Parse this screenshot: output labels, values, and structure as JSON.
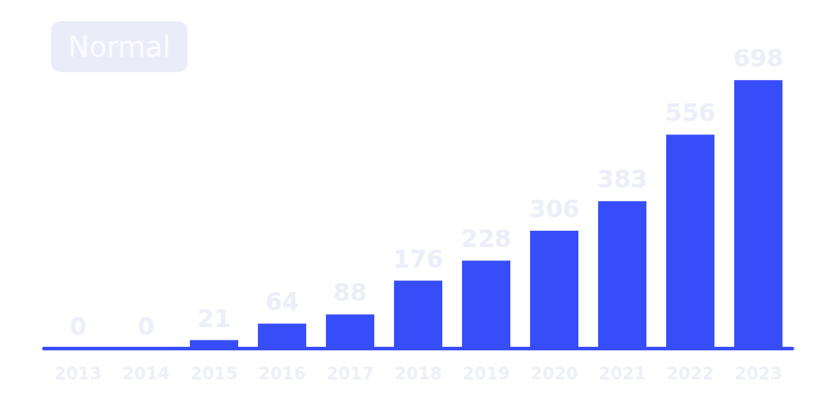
{
  "chart_data": {
    "type": "bar",
    "title": "Normal",
    "categories": [
      "2013",
      "2014",
      "2015",
      "2016",
      "2017",
      "2018",
      "2019",
      "2020",
      "2021",
      "2022",
      "2023"
    ],
    "values": [
      0,
      0,
      21,
      64,
      88,
      176,
      228,
      306,
      383,
      556,
      698
    ],
    "color": "#374dfa",
    "ylim": [
      0,
      800
    ],
    "grid": false,
    "data_labels": true,
    "tick_labels": "x"
  }
}
